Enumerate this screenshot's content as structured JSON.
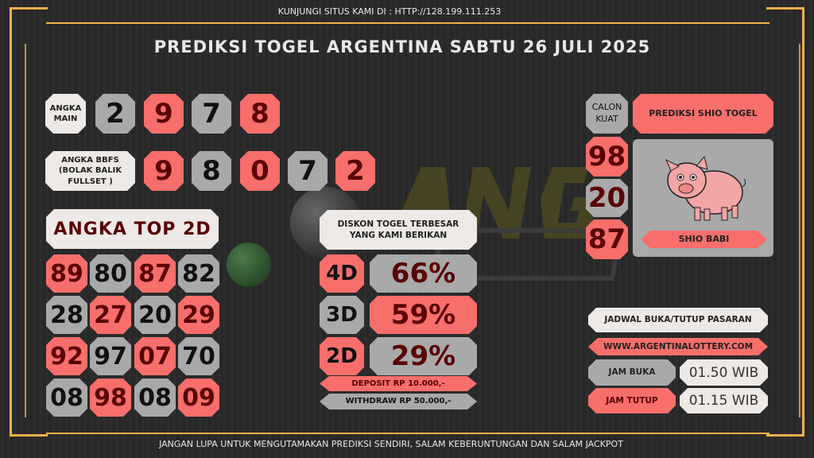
{
  "header": {
    "site": "KUNJUNGI SITUS KAMI DI : HTTP://128.199.111.253",
    "title": "PREDIKSI TOGEL ARGENTINA SABTU 26 JULI 2025"
  },
  "footer": "JANGAN LUPA UNTUK MENGUTAMAKAN PREDIKSI SENDIRI, SALAM KEBERUNTUNGAN DAN SALAM JACKPOT",
  "angka_main": {
    "label": "ANGKA MAIN",
    "digits": [
      "2",
      "9",
      "7",
      "8"
    ]
  },
  "bbfs": {
    "label": "ANGKA BBFS (BOLAK BALIK FULLSET )",
    "digits": [
      "9",
      "8",
      "0",
      "7",
      "2"
    ]
  },
  "top2d": {
    "title": "ANGKA TOP 2D",
    "rows": [
      [
        "89",
        "80",
        "87",
        "82"
      ],
      [
        "28",
        "27",
        "20",
        "29"
      ],
      [
        "92",
        "97",
        "07",
        "70"
      ],
      [
        "08",
        "98",
        "08",
        "09"
      ]
    ]
  },
  "diskon": {
    "title": "DISKON TOGEL TERBESAR YANG KAMI BERIKAN",
    "items": [
      {
        "type": "4D",
        "value": "66%"
      },
      {
        "type": "3D",
        "value": "59%"
      },
      {
        "type": "2D",
        "value": "29%"
      }
    ],
    "deposit": "DEPOSIT RP 10.000,-",
    "withdraw": "WITHDRAW RP 50.000,-"
  },
  "calon_kuat": {
    "label": "CALON KUAT",
    "numbers": [
      "98",
      "20",
      "87"
    ]
  },
  "shio": {
    "title": "PREDIKSI SHIO TOGEL",
    "name": "SHIO BABI",
    "icon": "pig-icon"
  },
  "jadwal": {
    "title": "JADWAL BUKA/TUTUP PASARAN",
    "website": "WWW.ARGENTINALOTTERY.COM",
    "buka_label": "JAM BUKA",
    "buka_value": "01.50 WIB",
    "tutup_label": "JAM TUTUP",
    "tutup_value": "01.15 WIB"
  },
  "colors": {
    "red": "#f76e6b",
    "gray": "#a9a9a9",
    "cream": "#ece9e6",
    "gold": "#f0b04a",
    "dark_red": "#5a0000"
  }
}
